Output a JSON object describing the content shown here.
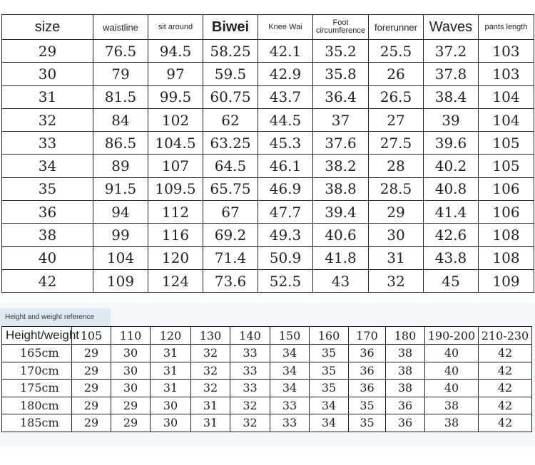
{
  "size_table": {
    "columns": [
      "size",
      "waistline",
      "sit around",
      "Biwei",
      "Knee Wai",
      "Foot circumference",
      "forerunner",
      "Waves",
      "pants length"
    ],
    "rows": [
      [
        "29",
        "76.5",
        "94.5",
        "58.25",
        "42.1",
        "35.2",
        "25.5",
        "37.2",
        "103"
      ],
      [
        "30",
        "79",
        "97",
        "59.5",
        "42.9",
        "35.8",
        "26",
        "37.8",
        "103"
      ],
      [
        "31",
        "81.5",
        "99.5",
        "60.75",
        "43.7",
        "36.4",
        "26.5",
        "38.4",
        "104"
      ],
      [
        "32",
        "84",
        "102",
        "62",
        "44.5",
        "37",
        "27",
        "39",
        "104"
      ],
      [
        "33",
        "86.5",
        "104.5",
        "63.25",
        "45.3",
        "37.6",
        "27.5",
        "39.6",
        "105"
      ],
      [
        "34",
        "89",
        "107",
        "64.5",
        "46.1",
        "38.2",
        "28",
        "40.2",
        "105"
      ],
      [
        "35",
        "91.5",
        "109.5",
        "65.75",
        "46.9",
        "38.8",
        "28.5",
        "40.8",
        "106"
      ],
      [
        "36",
        "94",
        "112",
        "67",
        "47.7",
        "39.4",
        "29",
        "41.4",
        "106"
      ],
      [
        "38",
        "99",
        "116",
        "69.2",
        "49.3",
        "40.6",
        "30",
        "42.6",
        "108"
      ],
      [
        "40",
        "104",
        "120",
        "71.4",
        "50.9",
        "41.8",
        "31",
        "43.8",
        "108"
      ],
      [
        "42",
        "109",
        "124",
        "73.6",
        "52.5",
        "43",
        "32",
        "45",
        "109"
      ]
    ]
  },
  "height_weight": {
    "caption": "Height and weight reference",
    "columns": [
      "Height/weight",
      "105",
      "110",
      "120",
      "130",
      "140",
      "150",
      "160",
      "170",
      "180",
      "190-200",
      "210-230"
    ],
    "rows": [
      [
        "165cm",
        "29",
        "30",
        "31",
        "32",
        "33",
        "34",
        "35",
        "36",
        "38",
        "40",
        "42"
      ],
      [
        "170cm",
        "29",
        "30",
        "31",
        "32",
        "33",
        "34",
        "35",
        "36",
        "38",
        "40",
        "42"
      ],
      [
        "175cm",
        "29",
        "30",
        "31",
        "32",
        "33",
        "34",
        "35",
        "36",
        "38",
        "40",
        "42"
      ],
      [
        "180cm",
        "29",
        "29",
        "30",
        "31",
        "32",
        "33",
        "34",
        "35",
        "36",
        "38",
        "42"
      ],
      [
        "185cm",
        "29",
        "29",
        "30",
        "31",
        "32",
        "33",
        "34",
        "35",
        "36",
        "38",
        "42"
      ]
    ]
  }
}
